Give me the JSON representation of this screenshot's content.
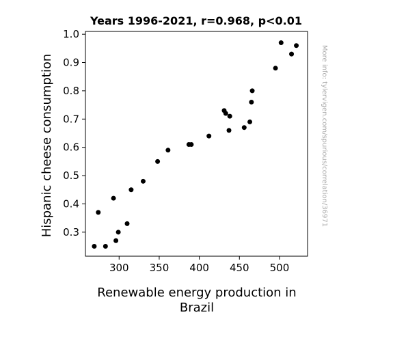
{
  "chart_data": {
    "type": "scatter",
    "title": "Years 1996-2021, r=0.968, p<0.01",
    "xlabel_lines": [
      "Renewable energy production in",
      "Brazil"
    ],
    "ylabel": "Hispanic cheese consumption",
    "xlim": [
      258,
      535
    ],
    "ylim": [
      0.215,
      1.01
    ],
    "xticks": [
      300,
      350,
      400,
      450,
      500
    ],
    "yticks": [
      0.3,
      0.4,
      0.5,
      0.6,
      0.7,
      0.8,
      0.9,
      1.0
    ],
    "ytick_labels": [
      "0.3",
      "0.4",
      "0.5",
      "0.6",
      "0.7",
      "0.8",
      "0.9",
      "1.0"
    ],
    "grid": false,
    "marker_color": "#000000",
    "points": [
      {
        "x": 269,
        "y": 0.25
      },
      {
        "x": 274,
        "y": 0.37
      },
      {
        "x": 283,
        "y": 0.25
      },
      {
        "x": 293,
        "y": 0.42
      },
      {
        "x": 296,
        "y": 0.27
      },
      {
        "x": 299,
        "y": 0.3
      },
      {
        "x": 310,
        "y": 0.33
      },
      {
        "x": 315,
        "y": 0.45
      },
      {
        "x": 330,
        "y": 0.48
      },
      {
        "x": 348,
        "y": 0.55
      },
      {
        "x": 361,
        "y": 0.59
      },
      {
        "x": 387,
        "y": 0.61
      },
      {
        "x": 390,
        "y": 0.61
      },
      {
        "x": 412,
        "y": 0.64
      },
      {
        "x": 431,
        "y": 0.73
      },
      {
        "x": 433,
        "y": 0.72
      },
      {
        "x": 437,
        "y": 0.66
      },
      {
        "x": 438,
        "y": 0.71
      },
      {
        "x": 456,
        "y": 0.67
      },
      {
        "x": 463,
        "y": 0.69
      },
      {
        "x": 465,
        "y": 0.76
      },
      {
        "x": 466,
        "y": 0.8
      },
      {
        "x": 495,
        "y": 0.88
      },
      {
        "x": 502,
        "y": 0.97
      },
      {
        "x": 515,
        "y": 0.93
      },
      {
        "x": 521,
        "y": 0.96
      }
    ]
  },
  "watermark": "More info: tylervigen.com/spurious/correlation/36971"
}
